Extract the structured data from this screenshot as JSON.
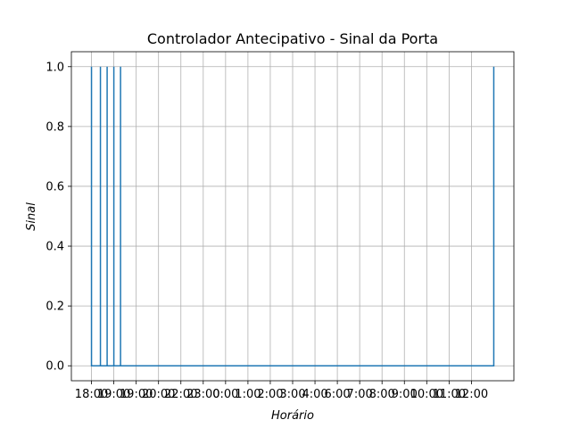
{
  "chart_data": {
    "type": "line",
    "title": "Controlador Antecipativo - Sinal da Porta",
    "xlabel": "Horário",
    "ylabel": "Sinal",
    "x_ticks": [
      "18:00",
      "19:00",
      "19:00",
      "20:00",
      "22:00",
      "23:00",
      "0:00",
      "1:00",
      "2:00",
      "3:00",
      "4:00",
      "6:00",
      "7:00",
      "8:00",
      "9:00",
      "10:00",
      "11:00",
      "12:00"
    ],
    "x_tick_positions": [
      0,
      0.5,
      1,
      1.5,
      2,
      2.5,
      3,
      3.5,
      4,
      4.5,
      5,
      5.5,
      6,
      6.5,
      7,
      7.5,
      8,
      8.5
    ],
    "xlim": [
      -0.45,
      9.45
    ],
    "y_ticks": [
      "0.0",
      "0.2",
      "0.4",
      "0.6",
      "0.8",
      "1.0"
    ],
    "y_tick_values": [
      0,
      0.2,
      0.4,
      0.6,
      0.8,
      1.0
    ],
    "ylim": [
      -0.05,
      1.05
    ],
    "grid": true,
    "series": [
      {
        "color": "#1f77b4",
        "x": [
          0,
          0,
          0,
          0.2,
          0.2,
          0.2,
          0.35,
          0.35,
          0.35,
          0.5,
          0.5,
          0.5,
          0.65,
          0.65,
          0.65,
          9.0,
          9.0
        ],
        "y": [
          0,
          1,
          0,
          0,
          1,
          0,
          0,
          1,
          0,
          0,
          1,
          0,
          0,
          1,
          0,
          0,
          1
        ]
      }
    ]
  }
}
